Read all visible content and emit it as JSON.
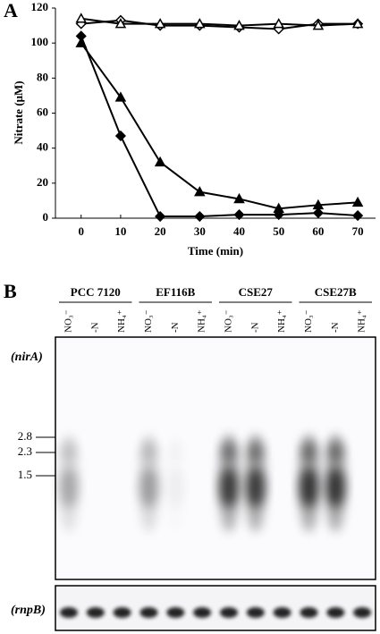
{
  "chart_data": {
    "type": "line",
    "panel_label": "A",
    "x_label": "Time (min)",
    "y_label": "Nitrate (μM)",
    "x": [
      0,
      10,
      20,
      30,
      40,
      50,
      60,
      70
    ],
    "xlim": [
      -6.5,
      74.5
    ],
    "xticks": [
      0,
      10,
      20,
      30,
      40,
      50,
      60,
      70
    ],
    "ylim": [
      0,
      120
    ],
    "yticks": [
      0,
      20,
      40,
      60,
      80,
      100,
      120
    ],
    "series": [
      {
        "color": "#000000",
        "marker": "diamond",
        "filled": false,
        "values": [
          111,
          113,
          110,
          110,
          109,
          108,
          111,
          111
        ]
      },
      {
        "color": "#000000",
        "marker": "triangle",
        "filled": false,
        "values": [
          114,
          111,
          111,
          111,
          110,
          111,
          110,
          111
        ]
      },
      {
        "color": "#000000",
        "marker": "triangle",
        "filled": true,
        "values": [
          100,
          69,
          32,
          15,
          11,
          5.5,
          7.5,
          9
        ]
      },
      {
        "color": "#000000",
        "marker": "diamond",
        "filled": true,
        "values": [
          104,
          47,
          1,
          1,
          2,
          2,
          3,
          1.5
        ]
      }
    ]
  },
  "blot": {
    "panel_label": "B",
    "groups": [
      {
        "name": "PCC 7120",
        "lanes": [
          "NO₃⁻",
          "-N",
          "NH₄⁺"
        ]
      },
      {
        "name": "EF116B",
        "lanes": [
          "NO₃⁻",
          "-N",
          "NH₄⁺"
        ]
      },
      {
        "name": "CSE27",
        "lanes": [
          "NO₃⁻",
          "-N",
          "NH₄⁺"
        ]
      },
      {
        "name": "CSE27B",
        "lanes": [
          "NO₃⁻",
          "-N",
          "NH₄⁺"
        ]
      }
    ],
    "rows": [
      "(nirA)",
      "(rnpB)"
    ],
    "size_markers": [
      "2.8",
      "2.3",
      "1.5"
    ]
  }
}
